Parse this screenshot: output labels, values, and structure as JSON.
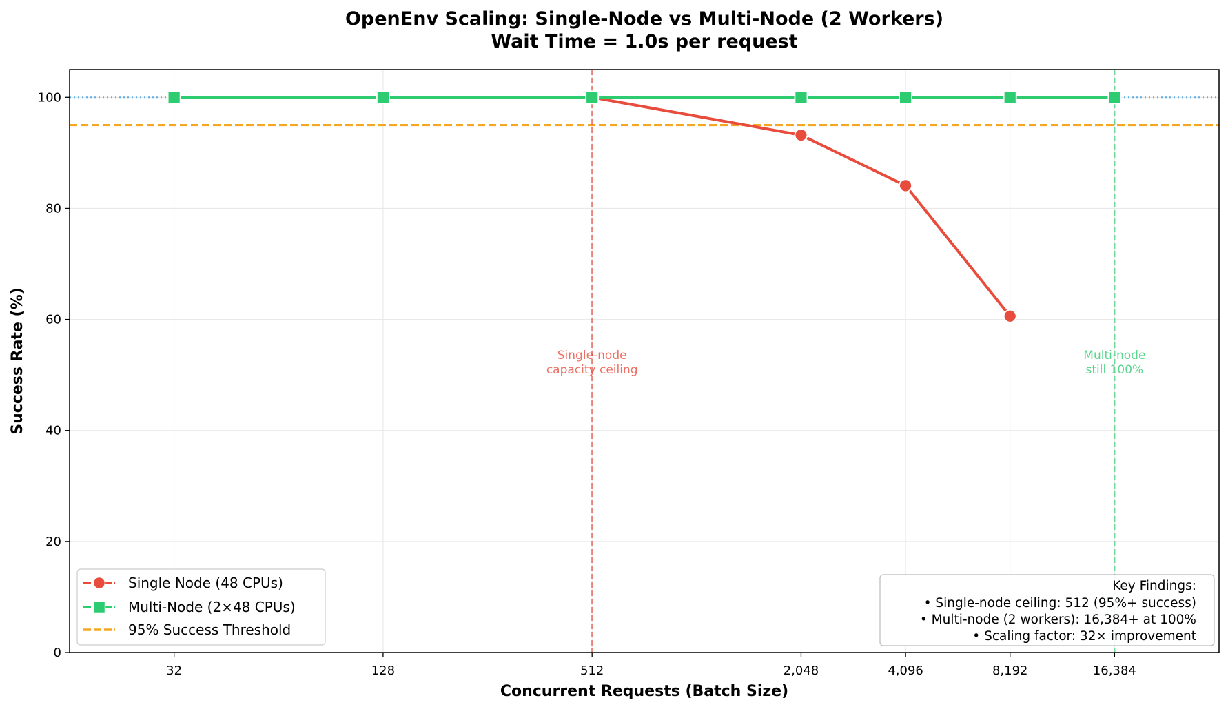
{
  "chart_data": {
    "type": "line",
    "title": "OpenEnv Scaling: Single-Node vs Multi-Node (2 Workers)",
    "subtitle": "Wait Time = 1.0s per request",
    "xlabel": "Concurrent Requests (Batch Size)",
    "ylabel": "Success Rate (%)",
    "xscale": "log2",
    "xlim": [
      16,
      32768
    ],
    "ylim": [
      0,
      105
    ],
    "x_ticks": [
      32,
      128,
      512,
      2048,
      4096,
      8192,
      16384
    ],
    "x_tick_labels": [
      "32",
      "128",
      "512",
      "2,048",
      "4,096",
      "8,192",
      "16,384"
    ],
    "y_ticks": [
      0,
      20,
      40,
      60,
      80,
      100
    ],
    "y_tick_labels": [
      "0",
      "20",
      "40",
      "60",
      "80",
      "100"
    ],
    "grid": true,
    "series": [
      {
        "name": "Single Node (48 CPUs)",
        "color": "#e74c3c",
        "marker": "circle",
        "x": [
          32,
          128,
          512,
          2048,
          4096,
          8192
        ],
        "values": [
          100,
          100,
          100,
          93.2,
          84.1,
          60.6
        ]
      },
      {
        "name": "Multi-Node (2×48 CPUs)",
        "color": "#2ecc71",
        "marker": "square",
        "x": [
          32,
          128,
          512,
          2048,
          4096,
          8192,
          16384
        ],
        "values": [
          100,
          100,
          100,
          100,
          100,
          100,
          100
        ]
      }
    ],
    "threshold": {
      "name": "95% Success Threshold",
      "value": 95,
      "color": "#f5a623"
    },
    "reference_line": {
      "value": 100,
      "color": "#5dade2"
    },
    "vlines": [
      {
        "x": 512,
        "color": "#e74c3c",
        "label_lines": [
          "Single-node",
          "capacity ceiling"
        ]
      },
      {
        "x": 16384,
        "color": "#2ecc71",
        "label_lines": [
          "Multi-node",
          "still 100%"
        ]
      }
    ],
    "legend": {
      "position": "lower-left",
      "entries": [
        "Single Node (48 CPUs)",
        "Multi-Node (2×48 CPUs)",
        "95% Success Threshold"
      ]
    },
    "key_findings": {
      "position": "lower-right",
      "lines": [
        "Key Findings:",
        "• Single-node ceiling: 512 (95%+ success)",
        "• Multi-node (2 workers): 16,384+ at 100%",
        "• Scaling factor: 32× improvement"
      ]
    }
  }
}
